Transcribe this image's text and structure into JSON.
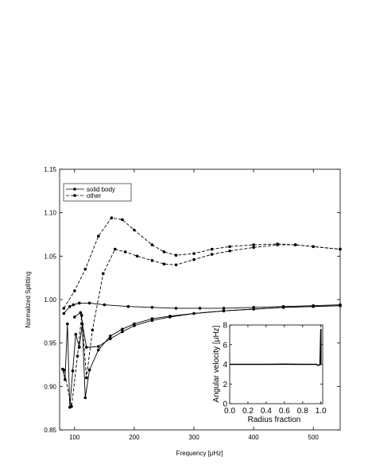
{
  "chart_data": [
    {
      "type": "line",
      "title": "",
      "xlabel": "Frequency [μHz]",
      "ylabel": "Normalized Splitting",
      "xlim": [
        75,
        545
      ],
      "ylim": [
        0.85,
        1.15
      ],
      "grid": false,
      "legend_position": "top-left",
      "x_ticks": [
        100,
        200,
        300,
        400,
        500
      ],
      "y_ticks": [
        0.85,
        0.9,
        0.95,
        1.0,
        1.05,
        1.1,
        1.15
      ],
      "x_tick_labels": [
        "100",
        "200",
        "300",
        "400",
        "500"
      ],
      "y_tick_labels": [
        "0.85",
        "0.90",
        "0.95",
        "1.00",
        "1.05",
        "1.10",
        "1.15"
      ],
      "legend": [
        {
          "label": "solid body",
          "style": "solid",
          "marker": "dot"
        },
        {
          "label": "other",
          "style": "dashed",
          "marker": "dot"
        }
      ],
      "series": [
        {
          "name": "solid body",
          "style": "solid",
          "x": [
            82,
            92,
            98,
            108,
            125,
            150,
            190,
            230,
            270,
            310,
            350,
            400,
            450,
            500,
            545
          ],
          "y": [
            0.984,
            0.992,
            0.994,
            0.996,
            0.996,
            0.994,
            0.992,
            0.991,
            0.99,
            0.99,
            0.99,
            0.991,
            0.992,
            0.993,
            0.994
          ]
        },
        {
          "name": "solid body",
          "style": "solid",
          "x": [
            80,
            84,
            88,
            92,
            97,
            102,
            108,
            113,
            118,
            125,
            140,
            160,
            180,
            200,
            230,
            260,
            300,
            350,
            400,
            450,
            500,
            545
          ],
          "y": [
            0.92,
            0.908,
            0.972,
            0.876,
            0.918,
            0.96,
            0.945,
            0.972,
            0.887,
            0.919,
            0.942,
            0.958,
            0.966,
            0.972,
            0.978,
            0.981,
            0.984,
            0.987,
            0.989,
            0.991,
            0.992,
            0.993
          ]
        },
        {
          "name": "solid body",
          "style": "solid",
          "x": [
            100,
            110,
            120,
            140,
            160,
            180,
            200,
            230,
            260,
            300,
            350,
            400,
            450,
            500,
            545
          ],
          "y": [
            0.98,
            0.985,
            0.945,
            0.946,
            0.955,
            0.963,
            0.97,
            0.976,
            0.98,
            0.984,
            0.987,
            0.989,
            0.991,
            0.992,
            0.993
          ]
        },
        {
          "name": "other",
          "style": "dashed",
          "x": [
            82,
            100,
            118,
            140,
            162,
            180,
            200,
            230,
            250,
            270,
            300,
            330,
            360,
            400,
            440,
            470,
            500,
            545
          ],
          "y": [
            0.99,
            1.01,
            1.035,
            1.073,
            1.094,
            1.092,
            1.08,
            1.063,
            1.055,
            1.051,
            1.053,
            1.058,
            1.061,
            1.063,
            1.064,
            1.063,
            1.061,
            1.058
          ]
        },
        {
          "name": "other",
          "style": "dashed",
          "x": [
            82,
            95,
            105,
            112,
            120,
            130,
            148,
            168,
            185,
            205,
            230,
            250,
            270,
            300,
            330,
            360,
            400,
            440,
            470,
            500,
            545
          ],
          "y": [
            0.919,
            0.877,
            0.935,
            0.982,
            0.91,
            0.965,
            1.03,
            1.058,
            1.055,
            1.05,
            1.045,
            1.041,
            1.04,
            1.046,
            1.052,
            1.056,
            1.06,
            1.063,
            1.063,
            1.061,
            1.058
          ]
        }
      ]
    },
    {
      "type": "line",
      "title": "",
      "xlabel": "Radius fraction",
      "ylabel": "Angular velocity [μHz]",
      "xlim": [
        0.0,
        1.02
      ],
      "ylim": [
        0,
        8
      ],
      "grid": false,
      "x_ticks": [
        0.0,
        0.2,
        0.4,
        0.6,
        0.8,
        1.0
      ],
      "y_ticks": [
        0,
        2,
        4,
        6,
        8
      ],
      "x_tick_labels": [
        "0.0",
        "0.2",
        "0.4",
        "0.6",
        "0.8",
        "1.0"
      ],
      "y_tick_labels": [
        "0",
        "2",
        "4",
        "6",
        "8"
      ],
      "series": [
        {
          "x": [
            0.0,
            0.2,
            0.4,
            0.6,
            0.8,
            0.95,
            0.97,
            0.99,
            1.0,
            1.0
          ],
          "y": [
            4.0,
            4.0,
            4.0,
            4.02,
            4.0,
            4.0,
            3.9,
            3.95,
            7.6,
            4.0
          ]
        }
      ]
    }
  ]
}
